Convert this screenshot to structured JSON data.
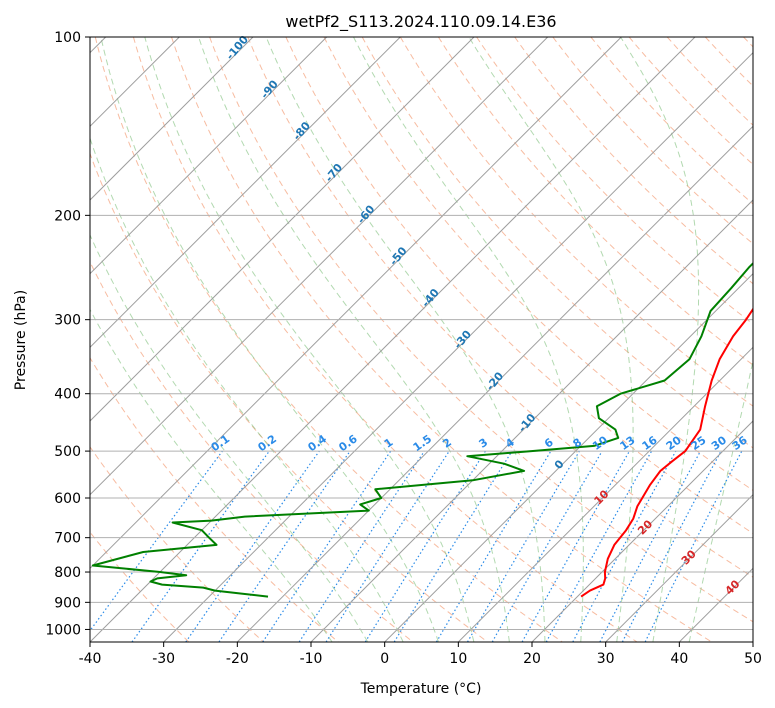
{
  "chart_data": {
    "type": "line",
    "title": "wetPf2_S113.2024.110.09.14.E36",
    "xlabel": "Temperature (°C)",
    "ylabel": "Pressure (hPa)",
    "xlim": [
      -40,
      50
    ],
    "ylim": [
      1050,
      100
    ],
    "y_scale": "log",
    "grid": true,
    "x_ticks": [
      -40,
      -30,
      -20,
      -10,
      0,
      10,
      20,
      30,
      40,
      50
    ],
    "y_ticks": [
      1000,
      900,
      800,
      700,
      600,
      500,
      400,
      300,
      200,
      100
    ],
    "series": [
      {
        "color": "#ff0000",
        "pressure": [
          100,
          115,
          130,
          145,
          160,
          168,
          175,
          185,
          200,
          220,
          250,
          280,
          300,
          320,
          350,
          380,
          420,
          460,
          500,
          520,
          540,
          570,
          620,
          650,
          680,
          720,
          760,
          800,
          820,
          840,
          860,
          880
        ],
        "temperature": [
          11.5,
          8.4,
          6.0,
          3.9,
          0.6,
          -1.8,
          -2.4,
          -2.0,
          -1.0,
          0.6,
          2.7,
          4.5,
          5.3,
          5.8,
          7.1,
          8.9,
          11.5,
          14.0,
          14.9,
          14.5,
          14.2,
          14.7,
          15.9,
          17.0,
          17.6,
          18.0,
          19.0,
          20.4,
          21.3,
          21.9,
          20.9,
          20.5
        ]
      },
      {
        "color": "#008000",
        "pressure": [
          100,
          110,
          120,
          135,
          150,
          160,
          170,
          180,
          195,
          210,
          225,
          245,
          265,
          290,
          320,
          350,
          380,
          400,
          420,
          440,
          460,
          475,
          490,
          500,
          510,
          525,
          540,
          560,
          580,
          600,
          615,
          630,
          645,
          655,
          660,
          680,
          700,
          720,
          740,
          780,
          800,
          810,
          820,
          830,
          840,
          850,
          860,
          870,
          880
        ],
        "dewpoint": [
          0.0,
          -2.4,
          -3.8,
          -7.3,
          -7.7,
          -7.4,
          -6.8,
          -5.8,
          -3.0,
          -1.5,
          -1.4,
          -1.4,
          -1.0,
          -0.7,
          1.5,
          3.0,
          2.5,
          -1.7,
          -3.2,
          -1.3,
          2.5,
          4.0,
          1.8,
          -6.0,
          -14.0,
          -8.0,
          -4.3,
          -10.0,
          -22.0,
          -20.0,
          -22.0,
          -20.0,
          -36.0,
          -40.0,
          -45.0,
          -40.0,
          -38.0,
          -36.0,
          -45.0,
          -50.0,
          -40.0,
          -36.0,
          -39.5,
          -40.0,
          -38.0,
          -32.0,
          -30.0,
          -26.0,
          -22.0
        ]
      }
    ],
    "annotations": {
      "mixing_ratio_labels": [
        "0.1",
        "0.2",
        "0.4",
        "0.6",
        "1",
        "1.5",
        "2",
        "3",
        "4",
        "6",
        "8",
        "10",
        "13",
        "16",
        "20",
        "25",
        "30",
        "36"
      ],
      "saturated_adiabat_labels": [
        "-100",
        "-90",
        "-80",
        "-70",
        "-60",
        "-50",
        "-40",
        "-30",
        "-20",
        "-10",
        "0"
      ],
      "dry_adiabat_labels": [
        "10",
        "20",
        "30",
        "40"
      ]
    }
  }
}
